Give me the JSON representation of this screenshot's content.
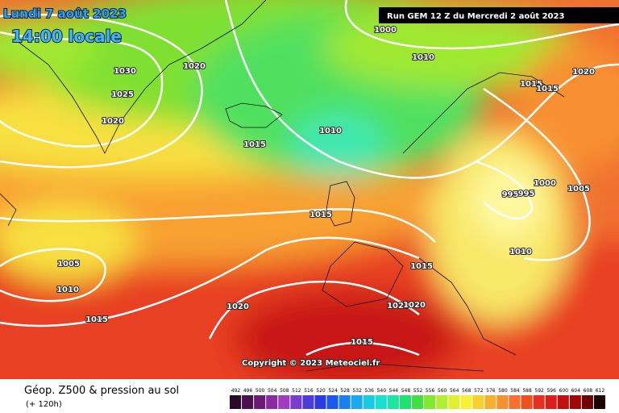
{
  "header": {
    "date": "Lundi 7 août 2023",
    "time": "14:00 locale",
    "run": "Run GEM 12 Z du Mercredi 2 août 2023"
  },
  "isobar_labels": [
    1030,
    1025,
    1020,
    1020,
    1000,
    1010,
    1020,
    1015,
    1015,
    1010,
    1015,
    1000,
    1005,
    995,
    995,
    1015,
    1005,
    1010,
    1010,
    1015,
    1020,
    1020,
    1020,
    1015,
    1015
  ],
  "copyright": "Copyright © 2023 Meteociel.fr",
  "legend": {
    "title": "Géop. Z500 & pression au sol",
    "subtitle": "(+ 120h)",
    "scale": [
      492,
      496,
      500,
      504,
      508,
      512,
      516,
      520,
      524,
      528,
      532,
      536,
      540,
      544,
      548,
      552,
      556,
      560,
      564,
      568,
      572,
      576,
      580,
      584,
      588,
      592,
      596,
      600,
      604,
      608,
      612
    ],
    "colors": [
      "#2a0a2a",
      "#4a1050",
      "#6a1a78",
      "#8a2aa0",
      "#a03cc0",
      "#7a3cd0",
      "#4a3cd8",
      "#2a3ce0",
      "#1a5ae8",
      "#1a80f0",
      "#1aa8f0",
      "#1ac8e8",
      "#1ae0d0",
      "#1ae8a0",
      "#20e070",
      "#40e040",
      "#80e830",
      "#b0f030",
      "#e0f030",
      "#f8f030",
      "#f8d030",
      "#f8b030",
      "#f89030",
      "#f87030",
      "#f05020",
      "#e83020",
      "#d82018",
      "#c01010",
      "#a00808",
      "#700404",
      "#200000"
    ]
  }
}
